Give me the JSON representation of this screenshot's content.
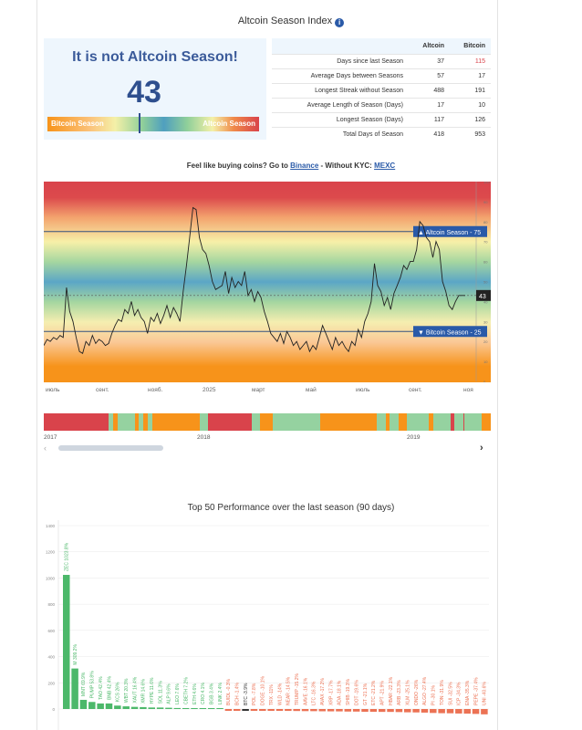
{
  "header": {
    "title": "Altcoin Season Index",
    "info_icon": "info-circle-icon"
  },
  "status": {
    "headline": "It is not Altcoin Season!",
    "index": 43,
    "left_label": "Bitcoin Season",
    "right_label": "Altcoin Season"
  },
  "stats": {
    "columns": [
      "",
      "Altcoin",
      "Bitcoin"
    ],
    "rows": [
      [
        "Days since last Season",
        "37",
        "115"
      ],
      [
        "Average Days between Seasons",
        "57",
        "17"
      ],
      [
        "Longest Streak without Season",
        "488",
        "191"
      ],
      [
        "Average Length of Season (Days)",
        "17",
        "10"
      ],
      [
        "Longest Season (Days)",
        "117",
        "126"
      ],
      [
        "Total Days of Season",
        "418",
        "953"
      ]
    ]
  },
  "promo": {
    "prefix": "Feel like buying coins? Go to ",
    "link1": "Binance",
    "middle": " - Without KYC: ",
    "link2": "MEXC"
  },
  "colors": {
    "altcoin": "#d9434b",
    "bitcoin": "#f7931a",
    "neutral": "#4f9fbf",
    "positive": "#4cb86a",
    "negative": "#ec7254",
    "label_blue": "#2a5aa8"
  },
  "chart_data": [
    {
      "type": "line",
      "ylim": [
        0,
        100
      ],
      "yticks": [
        0,
        10,
        20,
        30,
        40,
        50,
        60,
        70,
        80,
        90,
        100
      ],
      "xticks": [
        "июль",
        "сент.",
        "нояб.",
        "2025",
        "март",
        "май",
        "июль",
        "сент.",
        "ноя"
      ],
      "thresholds": [
        {
          "label": "▲ Altcoin Season - 75",
          "value": 75
        },
        {
          "label": "▼ Bitcoin Season - 25",
          "value": 25
        }
      ],
      "current_label": "43",
      "values": [
        18,
        21,
        20,
        22,
        21,
        23,
        22,
        47,
        35,
        30,
        22,
        15,
        14,
        20,
        18,
        23,
        19,
        21,
        20,
        18,
        19,
        24,
        28,
        31,
        30,
        36,
        34,
        40,
        33,
        36,
        32,
        30,
        24,
        32,
        30,
        34,
        29,
        33,
        38,
        32,
        37,
        34,
        30,
        45,
        58,
        72,
        87,
        86,
        72,
        66,
        64,
        58,
        50,
        46,
        47,
        48,
        55,
        44,
        52,
        47,
        50,
        48,
        55,
        43,
        46,
        40,
        45,
        42,
        35,
        30,
        24,
        22,
        20,
        24,
        19,
        25,
        22,
        18,
        20,
        16,
        18,
        20,
        15,
        18,
        16,
        22,
        28,
        24,
        20,
        16,
        22,
        18,
        20,
        17,
        15,
        20,
        18,
        26,
        22,
        30,
        34,
        40,
        59,
        48,
        45,
        38,
        42,
        36,
        44,
        48,
        52,
        58,
        56,
        60,
        60,
        66,
        80,
        78,
        72,
        70,
        62,
        70,
        66,
        50,
        45,
        38,
        36,
        40,
        43,
        43,
        43
      ]
    },
    {
      "type": "timeline",
      "years": [
        "2017",
        "2018",
        "2019"
      ],
      "segments": [
        [
          "a",
          15
        ],
        [
          "n",
          1
        ],
        [
          "b",
          1
        ],
        [
          "n",
          4
        ],
        [
          "b",
          1
        ],
        [
          "n",
          1
        ],
        [
          "b",
          1
        ],
        [
          "n",
          1
        ],
        [
          "b",
          3
        ],
        [
          "b",
          4
        ],
        [
          "b",
          4
        ],
        [
          "n",
          2
        ],
        [
          "a",
          10
        ],
        [
          "n",
          2
        ],
        [
          "b",
          2
        ],
        [
          "b",
          1
        ],
        [
          "n",
          11
        ],
        [
          "b",
          13
        ],
        [
          "n",
          2
        ],
        [
          "b",
          1
        ],
        [
          "n",
          2
        ],
        [
          "b",
          2
        ],
        [
          "n",
          5
        ],
        [
          "b",
          1
        ],
        [
          "n",
          4
        ],
        [
          "a",
          1
        ],
        [
          "n",
          2
        ],
        [
          "a",
          0.3
        ],
        [
          "n",
          4
        ],
        [
          "b",
          2
        ]
      ]
    },
    {
      "type": "bar",
      "title": "Top 50 Performance over the last season (90 days)",
      "ylim": [
        0,
        1400
      ],
      "yticks": [
        0,
        200,
        400,
        600,
        800,
        1000,
        1200,
        1400
      ],
      "categories": [
        "ZEC",
        "M",
        "MNT",
        "PUMP",
        "TAO",
        "BNB",
        "KCS",
        "WBT",
        "XAUT",
        "XMR",
        "HYPE",
        "SOL",
        "ALP",
        "LEO",
        "CBETH",
        "ETH",
        "CRO",
        "BGB",
        "LINK",
        "BUIDL",
        "BCH",
        "BTC",
        "POL",
        "DOGE",
        "TRX",
        "WLD",
        "NEAR",
        "TRUMP",
        "AAVE",
        "LTC",
        "AVAX",
        "XRP",
        "ADA",
        "SHIB",
        "DOT",
        "GT",
        "ETC",
        "APT",
        "HBAR",
        "ARB",
        "XLM",
        "ONDO",
        "ALGO",
        "PI",
        "TON",
        "SUI",
        "ICP",
        "ENA",
        "PEPE",
        "UNI"
      ],
      "values": [
        1023.8,
        309.2,
        69.9,
        53.8,
        42.4,
        42.4,
        26,
        20.3,
        16.4,
        14.6,
        11.6,
        11.3,
        9.6,
        7.6,
        7.2,
        4.6,
        4.1,
        3.4,
        2.4,
        -0.3,
        -1.4,
        -3.9,
        -7.8,
        -10.1,
        -11,
        -14,
        -14.5,
        -15.2,
        -16.1,
        -16.3,
        -17.2,
        -17.7,
        -18.1,
        -19.3,
        -19.6,
        -21.1,
        -21.2,
        -21.9,
        -22.1,
        -23.3,
        -25.1,
        -26,
        -27.4,
        -30.1,
        -31.9,
        -32.5,
        -34.3,
        -35.3,
        -37.4,
        -40.6
      ]
    }
  ]
}
